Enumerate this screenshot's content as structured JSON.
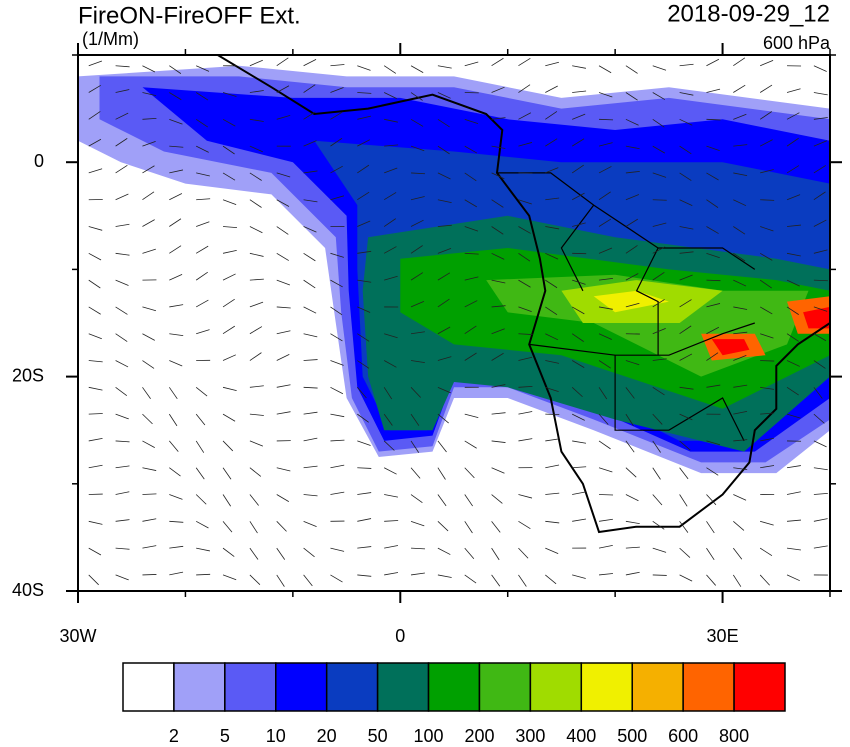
{
  "header": {
    "title": "FireON-FireOFF Ext.",
    "units": "(1/Mm)",
    "date": "2018-09-29_12",
    "level": "600 hPa"
  },
  "map": {
    "xlim": [
      -30,
      40
    ],
    "ylim": [
      10,
      -40
    ],
    "xticks": [
      {
        "value": -30,
        "label": "30W"
      },
      {
        "value": 0,
        "label": "0"
      },
      {
        "value": 30,
        "label": "30E"
      }
    ],
    "xticks_minor": [
      -20,
      -10,
      10,
      20,
      40
    ],
    "yticks": [
      {
        "value": 0,
        "label": "0"
      },
      {
        "value": -20,
        "label": "20S"
      },
      {
        "value": -40,
        "label": "40S"
      }
    ],
    "yticks_minor": [
      10,
      -10,
      -30
    ]
  },
  "colorbar": {
    "levels": [
      2,
      5,
      10,
      20,
      50,
      100,
      200,
      300,
      400,
      500,
      600,
      800
    ],
    "colors": [
      "#ffffff",
      "#a0a0f8",
      "#5a5af5",
      "#0000ff",
      "#0a3cc0",
      "#00705a",
      "#00a000",
      "#40b814",
      "#a0dc00",
      "#f0f000",
      "#f5b000",
      "#ff6400",
      "#ff0000"
    ]
  }
}
